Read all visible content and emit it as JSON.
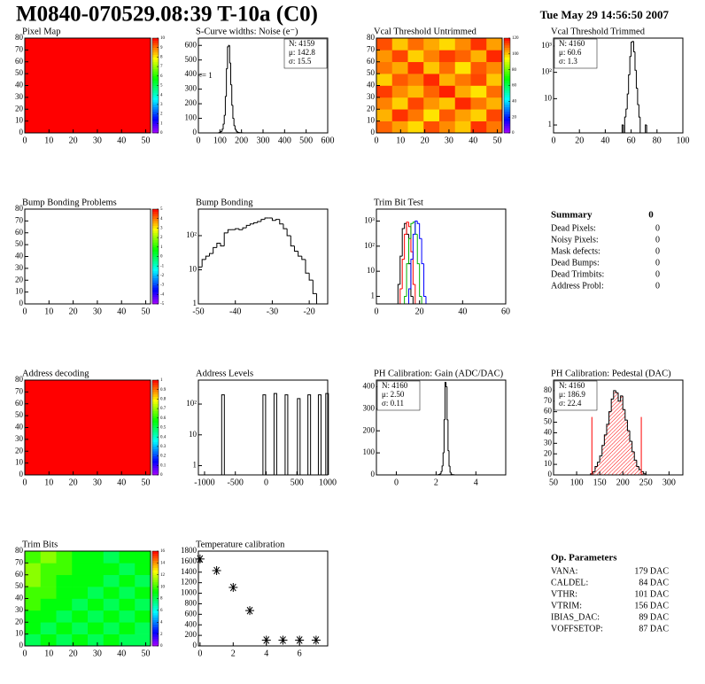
{
  "header": {
    "title": "M0840-070529.08:39 T-10a (C0)",
    "date": "Tue May 29 14:56:50 2007"
  },
  "chart_data": [
    {
      "type": "heatmap",
      "title": "Pixel Map",
      "xlim": [
        0,
        52
      ],
      "ylim": [
        0,
        80
      ],
      "xticks": [
        0,
        10,
        20,
        30,
        40,
        50
      ],
      "yticks": [
        0,
        10,
        20,
        30,
        40,
        50,
        60,
        70,
        80
      ],
      "xbins": [
        0,
        52
      ],
      "ybins": [
        0,
        80
      ],
      "z": [
        [
          10
        ]
      ],
      "zlim": [
        0,
        10
      ],
      "zticks": [
        0,
        1,
        2,
        3,
        4,
        5,
        6,
        7,
        8,
        9,
        10
      ]
    },
    {
      "type": "histogram",
      "title": "S-Curve widths: Noise (e⁻)",
      "xlim": [
        0,
        600
      ],
      "ylim": [
        0,
        650
      ],
      "xticks": [
        0,
        100,
        200,
        300,
        400,
        500,
        600
      ],
      "yticks": [
        0,
        100,
        200,
        300,
        400,
        500,
        600
      ],
      "bins": [
        95,
        100,
        105,
        110,
        115,
        120,
        125,
        130,
        135,
        140,
        145,
        150,
        155,
        160,
        165,
        170,
        175,
        180,
        185,
        190,
        195,
        200,
        205
      ],
      "values": [
        2,
        5,
        10,
        25,
        60,
        120,
        250,
        440,
        590,
        600,
        480,
        330,
        190,
        100,
        50,
        25,
        12,
        6,
        3,
        2,
        1,
        1
      ],
      "color": "#000000",
      "stats_corner": "top-right",
      "stats": [
        {
          "text": "N: 4159"
        },
        {
          "text": "μ: 142.8"
        },
        {
          "text": "σ: 15.5"
        }
      ],
      "annotations": [
        {
          "text": "<= 1",
          "x": 30,
          "y": 390
        }
      ]
    },
    {
      "type": "heatmap",
      "title": "Vcal Threshold Untrimmed",
      "xlim": [
        0,
        52
      ],
      "ylim": [
        0,
        80
      ],
      "xticks": [
        0,
        10,
        20,
        30,
        40,
        50
      ],
      "yticks": [
        0,
        10,
        20,
        30,
        40,
        50,
        60,
        70,
        80
      ],
      "xbins": [
        0,
        6.5,
        13,
        19.5,
        26,
        32.5,
        39,
        45.5,
        52
      ],
      "ybins": [
        0,
        10,
        20,
        30,
        40,
        50,
        60,
        70,
        80
      ],
      "z": [
        [
          110,
          104,
          98,
          112,
          106,
          100,
          115,
          108
        ],
        [
          102,
          115,
          108,
          97,
          111,
          104,
          99,
          113
        ],
        [
          107,
          99,
          113,
          105,
          100,
          116,
          108,
          102
        ],
        [
          114,
          106,
          101,
          110,
          117,
          103,
          97,
          109
        ],
        [
          99,
          111,
          107,
          116,
          102,
          108,
          113,
          100
        ],
        [
          108,
          103,
          115,
          100,
          109,
          97,
          111,
          106
        ],
        [
          105,
          113,
          99,
          107,
          114,
          110,
          102,
          116
        ],
        [
          112,
          100,
          109,
          103,
          98,
          106,
          115,
          104
        ]
      ],
      "zlim": [
        0,
        120
      ],
      "zticks": [
        0,
        20,
        40,
        60,
        80,
        100,
        120
      ]
    },
    {
      "type": "histogram",
      "title": "Vcal Threshold Trimmed",
      "xlim": [
        0,
        100
      ],
      "ylim": [
        0.5,
        2000
      ],
      "log_y": true,
      "xticks": [
        0,
        20,
        40,
        60,
        80,
        100
      ],
      "yticks": [
        1,
        10,
        {
          "value": 100,
          "label": "10²"
        },
        {
          "value": 1000,
          "label": "10³"
        }
      ],
      "bins": [
        53,
        54,
        55,
        56,
        57,
        58,
        59,
        60,
        61,
        62,
        63,
        64,
        65,
        66,
        67,
        68,
        69,
        70,
        71,
        72,
        73
      ],
      "values": [
        1,
        0,
        2,
        4,
        15,
        80,
        400,
        1400,
        1500,
        600,
        120,
        25,
        6,
        2,
        0,
        0,
        0,
        0,
        1,
        0
      ],
      "color": "#000000",
      "stats_corner": "top-left",
      "stats": [
        {
          "text": "N: 4160"
        },
        {
          "text": "μ: 60.6"
        },
        {
          "text": "σ:  1.3"
        }
      ]
    },
    {
      "type": "heatmap",
      "title": "Bump Bonding Problems",
      "xlim": [
        0,
        52
      ],
      "ylim": [
        0,
        80
      ],
      "xticks": [
        0,
        10,
        20,
        30,
        40,
        50
      ],
      "yticks": [
        0,
        10,
        20,
        30,
        40,
        50,
        60,
        70,
        80
      ],
      "xbins": [
        0,
        52
      ],
      "ybins": [
        0,
        80
      ],
      "z": [],
      "zlim": [
        -5,
        5
      ],
      "zticks": [
        -5,
        -4,
        -3,
        -2,
        -1,
        0,
        1,
        2,
        3,
        4,
        5
      ]
    },
    {
      "type": "histogram",
      "title": "Bump Bonding",
      "xlim": [
        -50,
        -15
      ],
      "ylim": [
        1,
        600
      ],
      "log_y": true,
      "xticks": [
        -50,
        -40,
        -30,
        -20
      ],
      "yticks": [
        1,
        10,
        {
          "value": 100,
          "label": "10²"
        }
      ],
      "bins": [
        -50,
        -49,
        -48,
        -47,
        -46,
        -45,
        -44,
        -43,
        -42,
        -41,
        -40,
        -39,
        -38,
        -37,
        -36,
        -35,
        -34,
        -33,
        -32,
        -31,
        -30,
        -29,
        -28,
        -27,
        -26,
        -25,
        -24,
        -23,
        -22,
        -21,
        -20,
        -19,
        -18,
        -17,
        -16
      ],
      "values": [
        12,
        20,
        25,
        30,
        45,
        60,
        50,
        120,
        150,
        150,
        160,
        150,
        170,
        200,
        220,
        240,
        260,
        300,
        330,
        330,
        280,
        300,
        220,
        160,
        100,
        50,
        35,
        25,
        20,
        8,
        5,
        2,
        1,
        1
      ],
      "color": "#000000"
    },
    {
      "type": "histogram",
      "title": "Trim Bit Test",
      "xlim": [
        0,
        60
      ],
      "ylim": [
        0.5,
        3000
      ],
      "log_y": true,
      "xticks": [
        0,
        20,
        40,
        60
      ],
      "yticks": [
        1,
        10,
        {
          "value": 100,
          "label": "10²"
        },
        {
          "value": 1000,
          "label": "10³"
        }
      ],
      "bins": [
        10,
        11,
        12,
        13,
        14,
        15,
        16,
        17,
        18,
        19,
        20,
        21,
        22,
        23,
        24,
        25
      ],
      "series": [
        {
          "color": "#000000",
          "values": [
            3,
            40,
            500,
            800,
            300,
            20,
            1,
            0,
            0,
            0,
            0,
            0,
            0,
            0,
            0
          ]
        },
        {
          "color": "#ff0000",
          "values": [
            0,
            2,
            30,
            300,
            900,
            600,
            60,
            3,
            0,
            0,
            0,
            0,
            0,
            0,
            0
          ]
        },
        {
          "color": "#00b000",
          "values": [
            0,
            0,
            0,
            1,
            20,
            200,
            800,
            900,
            300,
            20,
            1,
            0,
            0,
            0,
            0
          ]
        },
        {
          "color": "#0000ff",
          "values": [
            0,
            0,
            0,
            0,
            0,
            2,
            30,
            300,
            1000,
            800,
            200,
            20,
            1,
            0,
            0
          ]
        }
      ]
    },
    {
      "type": "heatmap",
      "title": "Address decoding",
      "xlim": [
        0,
        52
      ],
      "ylim": [
        0,
        80
      ],
      "xticks": [
        0,
        10,
        20,
        30,
        40,
        50
      ],
      "yticks": [
        0,
        10,
        20,
        30,
        40,
        50,
        60,
        70,
        80
      ],
      "xbins": [
        0,
        52
      ],
      "ybins": [
        0,
        80
      ],
      "z": [
        [
          1
        ]
      ],
      "zlim": [
        0,
        1
      ],
      "zticks": [
        0,
        0.1,
        0.2,
        0.3,
        0.4,
        0.5,
        0.6,
        0.7,
        0.8,
        0.9,
        1
      ]
    },
    {
      "type": "spikes",
      "title": "Address Levels",
      "xlim": [
        -1100,
        1000
      ],
      "ylim": [
        0.5,
        600
      ],
      "log_y": true,
      "xticks": [
        -1000,
        -500,
        0,
        500,
        1000
      ],
      "yticks": [
        1,
        10,
        {
          "value": 100,
          "label": "10²"
        }
      ],
      "x": [
        -700,
        -30,
        150,
        330,
        530,
        700,
        870,
        990
      ],
      "values": [
        200,
        200,
        220,
        200,
        150,
        200,
        200,
        220
      ],
      "color": "#000000"
    },
    {
      "type": "histogram",
      "title": "PH Calibration: Gain (ADC/DAC)",
      "xlim": [
        -1,
        5.5
      ],
      "ylim": [
        0,
        430
      ],
      "xticks": [
        0,
        2,
        4
      ],
      "yticks": [
        0,
        100,
        200,
        300,
        400
      ],
      "bins": [
        2.1,
        2.15,
        2.2,
        2.25,
        2.3,
        2.35,
        2.4,
        2.45,
        2.5,
        2.55,
        2.6,
        2.65,
        2.7,
        2.75,
        2.8,
        2.85,
        2.9
      ],
      "values": [
        1,
        2,
        5,
        15,
        40,
        100,
        250,
        420,
        400,
        250,
        110,
        40,
        12,
        4,
        1,
        1
      ],
      "color": "#000000",
      "stats_corner": "top-left",
      "stats": [
        {
          "text": "N: 4160"
        },
        {
          "text": "μ: 2.50"
        },
        {
          "text": "σ: 0.11"
        }
      ]
    },
    {
      "type": "histogram",
      "title": "PH Calibration: Pedestal (DAC)",
      "xlim": [
        50,
        330
      ],
      "ylim": [
        0,
        90
      ],
      "xticks": [
        50,
        100,
        150,
        200,
        250,
        300
      ],
      "yticks": [
        0,
        10,
        20,
        30,
        40,
        50,
        60,
        70,
        80
      ],
      "bins": [
        130,
        135,
        140,
        145,
        150,
        155,
        160,
        165,
        170,
        175,
        180,
        185,
        190,
        195,
        200,
        205,
        210,
        215,
        220,
        225,
        230,
        235,
        240,
        245,
        250
      ],
      "values": [
        1,
        3,
        8,
        12,
        18,
        28,
        38,
        48,
        60,
        72,
        80,
        78,
        70,
        75,
        62,
        52,
        42,
        32,
        22,
        14,
        8,
        5,
        3,
        1
      ],
      "color": "#000000",
      "fill": "hatch",
      "fill_color": "#ff0000",
      "cuts": [
        {
          "x": 133,
          "y": 55
        },
        {
          "x": 240,
          "y": 55
        }
      ],
      "stats_corner": "top-left",
      "stats": [
        {
          "text": "N: 4160"
        },
        {
          "text": "μ: 186.9",
          "color": "#ff0000"
        },
        {
          "text": "σ: 22.4",
          "color": "#ff0000"
        }
      ]
    },
    {
      "type": "heatmap",
      "title": "Trim Bits",
      "xlim": [
        0,
        52
      ],
      "ylim": [
        0,
        80
      ],
      "xticks": [
        0,
        10,
        20,
        30,
        40,
        50
      ],
      "yticks": [
        0,
        10,
        20,
        30,
        40,
        50,
        60,
        70,
        80
      ],
      "xbins": [
        0,
        6.5,
        13,
        19.5,
        26,
        32.5,
        39,
        45.5,
        52
      ],
      "ybins": [
        0,
        10,
        20,
        30,
        40,
        50,
        60,
        70,
        80
      ],
      "z": [
        [
          8,
          9,
          8,
          9,
          8,
          9,
          8,
          8
        ],
        [
          9,
          8,
          9,
          8,
          9,
          8,
          9,
          8
        ],
        [
          9,
          9,
          8,
          9,
          8,
          9,
          8,
          9
        ],
        [
          10,
          9,
          9,
          8,
          9,
          8,
          9,
          8
        ],
        [
          10,
          10,
          9,
          9,
          8,
          9,
          8,
          9
        ],
        [
          11,
          10,
          9,
          9,
          9,
          8,
          9,
          8
        ],
        [
          11,
          10,
          10,
          9,
          9,
          9,
          8,
          9
        ],
        [
          10,
          11,
          10,
          9,
          9,
          8,
          9,
          9
        ]
      ],
      "zlim": [
        0,
        16
      ],
      "zticks": [
        0,
        2,
        4,
        6,
        8,
        10,
        12,
        14,
        16
      ]
    },
    {
      "type": "scatter",
      "title": "Temperature calibration",
      "xlim": [
        -0.1,
        7.7
      ],
      "ylim": [
        0,
        1800
      ],
      "xticks": [
        0,
        2,
        4,
        6
      ],
      "yticks": [
        0,
        200,
        400,
        600,
        800,
        1000,
        1200,
        1400,
        1600,
        1800
      ],
      "x": [
        0,
        1,
        2,
        3,
        4,
        5,
        6,
        7
      ],
      "values": [
        1650,
        1430,
        1110,
        670,
        110,
        110,
        110,
        110
      ],
      "color": "#000000"
    }
  ],
  "summary": {
    "title": "Summary",
    "total": "0",
    "rows": [
      [
        "Dead Pixels:",
        "0"
      ],
      [
        "Noisy Pixels:",
        "0"
      ],
      [
        "Mask defects:",
        "0"
      ],
      [
        "Dead Bumps:",
        "0"
      ],
      [
        "Dead Trimbits:",
        "0"
      ],
      [
        "Address Probl:",
        "0"
      ]
    ]
  },
  "op_parameters": {
    "title": "Op. Parameters",
    "rows": [
      [
        "VANA:",
        "179 DAC"
      ],
      [
        "CALDEL:",
        "84 DAC"
      ],
      [
        "VTHR:",
        "101 DAC"
      ],
      [
        "VTRIM:",
        "156 DAC"
      ],
      [
        "IBIAS_DAC:",
        "89 DAC"
      ],
      [
        "VOFFSETOP:",
        "87 DAC"
      ]
    ]
  }
}
